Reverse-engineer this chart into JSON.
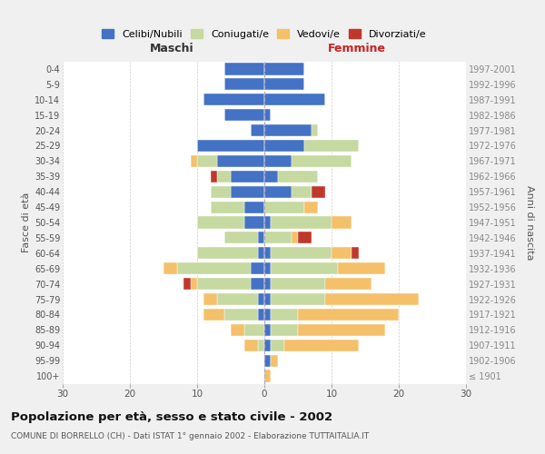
{
  "age_groups": [
    "100+",
    "95-99",
    "90-94",
    "85-89",
    "80-84",
    "75-79",
    "70-74",
    "65-69",
    "60-64",
    "55-59",
    "50-54",
    "45-49",
    "40-44",
    "35-39",
    "30-34",
    "25-29",
    "20-24",
    "15-19",
    "10-14",
    "5-9",
    "0-4"
  ],
  "birth_years": [
    "≤ 1901",
    "1902-1906",
    "1907-1911",
    "1912-1916",
    "1917-1921",
    "1922-1926",
    "1927-1931",
    "1932-1936",
    "1937-1941",
    "1942-1946",
    "1947-1951",
    "1952-1956",
    "1957-1961",
    "1962-1966",
    "1967-1971",
    "1972-1976",
    "1977-1981",
    "1982-1986",
    "1987-1991",
    "1992-1996",
    "1997-2001"
  ],
  "males_celibe": [
    0,
    0,
    0,
    0,
    1,
    1,
    2,
    2,
    1,
    1,
    3,
    3,
    5,
    5,
    7,
    10,
    2,
    6,
    9,
    6,
    6
  ],
  "males_coniugato": [
    0,
    0,
    1,
    3,
    5,
    6,
    8,
    11,
    9,
    5,
    7,
    5,
    3,
    2,
    3,
    0,
    0,
    0,
    0,
    0,
    0
  ],
  "males_vedovo": [
    0,
    0,
    2,
    2,
    3,
    2,
    1,
    2,
    0,
    0,
    0,
    0,
    0,
    0,
    1,
    0,
    0,
    0,
    0,
    0,
    0
  ],
  "males_divorziato": [
    0,
    0,
    0,
    0,
    0,
    0,
    1,
    0,
    0,
    0,
    0,
    0,
    0,
    1,
    0,
    0,
    0,
    0,
    0,
    0,
    0
  ],
  "females_nubile": [
    0,
    1,
    1,
    1,
    1,
    1,
    1,
    1,
    1,
    0,
    1,
    0,
    4,
    2,
    4,
    6,
    7,
    1,
    9,
    6,
    6
  ],
  "females_coniugata": [
    0,
    0,
    2,
    4,
    4,
    8,
    8,
    10,
    9,
    4,
    9,
    6,
    3,
    6,
    9,
    8,
    1,
    0,
    0,
    0,
    0
  ],
  "females_vedova": [
    1,
    1,
    11,
    13,
    15,
    14,
    7,
    7,
    3,
    1,
    3,
    2,
    0,
    0,
    0,
    0,
    0,
    0,
    0,
    0,
    0
  ],
  "females_divorziata": [
    0,
    0,
    0,
    0,
    0,
    0,
    0,
    0,
    1,
    2,
    0,
    0,
    2,
    0,
    0,
    0,
    0,
    0,
    0,
    0,
    0
  ],
  "color_celibe": "#4472c4",
  "color_coniugato": "#c5d9a0",
  "color_vedovo": "#f5c06a",
  "color_divorziato": "#c0382b",
  "xlim": 30,
  "title": "Popolazione per età, sesso e stato civile - 2002",
  "subtitle": "COMUNE DI BORRELLO (CH) - Dati ISTAT 1° gennaio 2002 - Elaborazione TUTTAITALIA.IT",
  "label_maschi": "Maschi",
  "label_femmine": "Femmine",
  "ylabel_left": "Fasce di età",
  "ylabel_right": "Anni di nascita",
  "bg_color": "#f0f0f0",
  "plot_bg_color": "#ffffff",
  "legend_labels": [
    "Celibi/Nubili",
    "Coniugati/e",
    "Vedovi/e",
    "Divorziati/e"
  ],
  "xticks": [
    -30,
    -20,
    -10,
    0,
    10,
    20,
    30
  ]
}
